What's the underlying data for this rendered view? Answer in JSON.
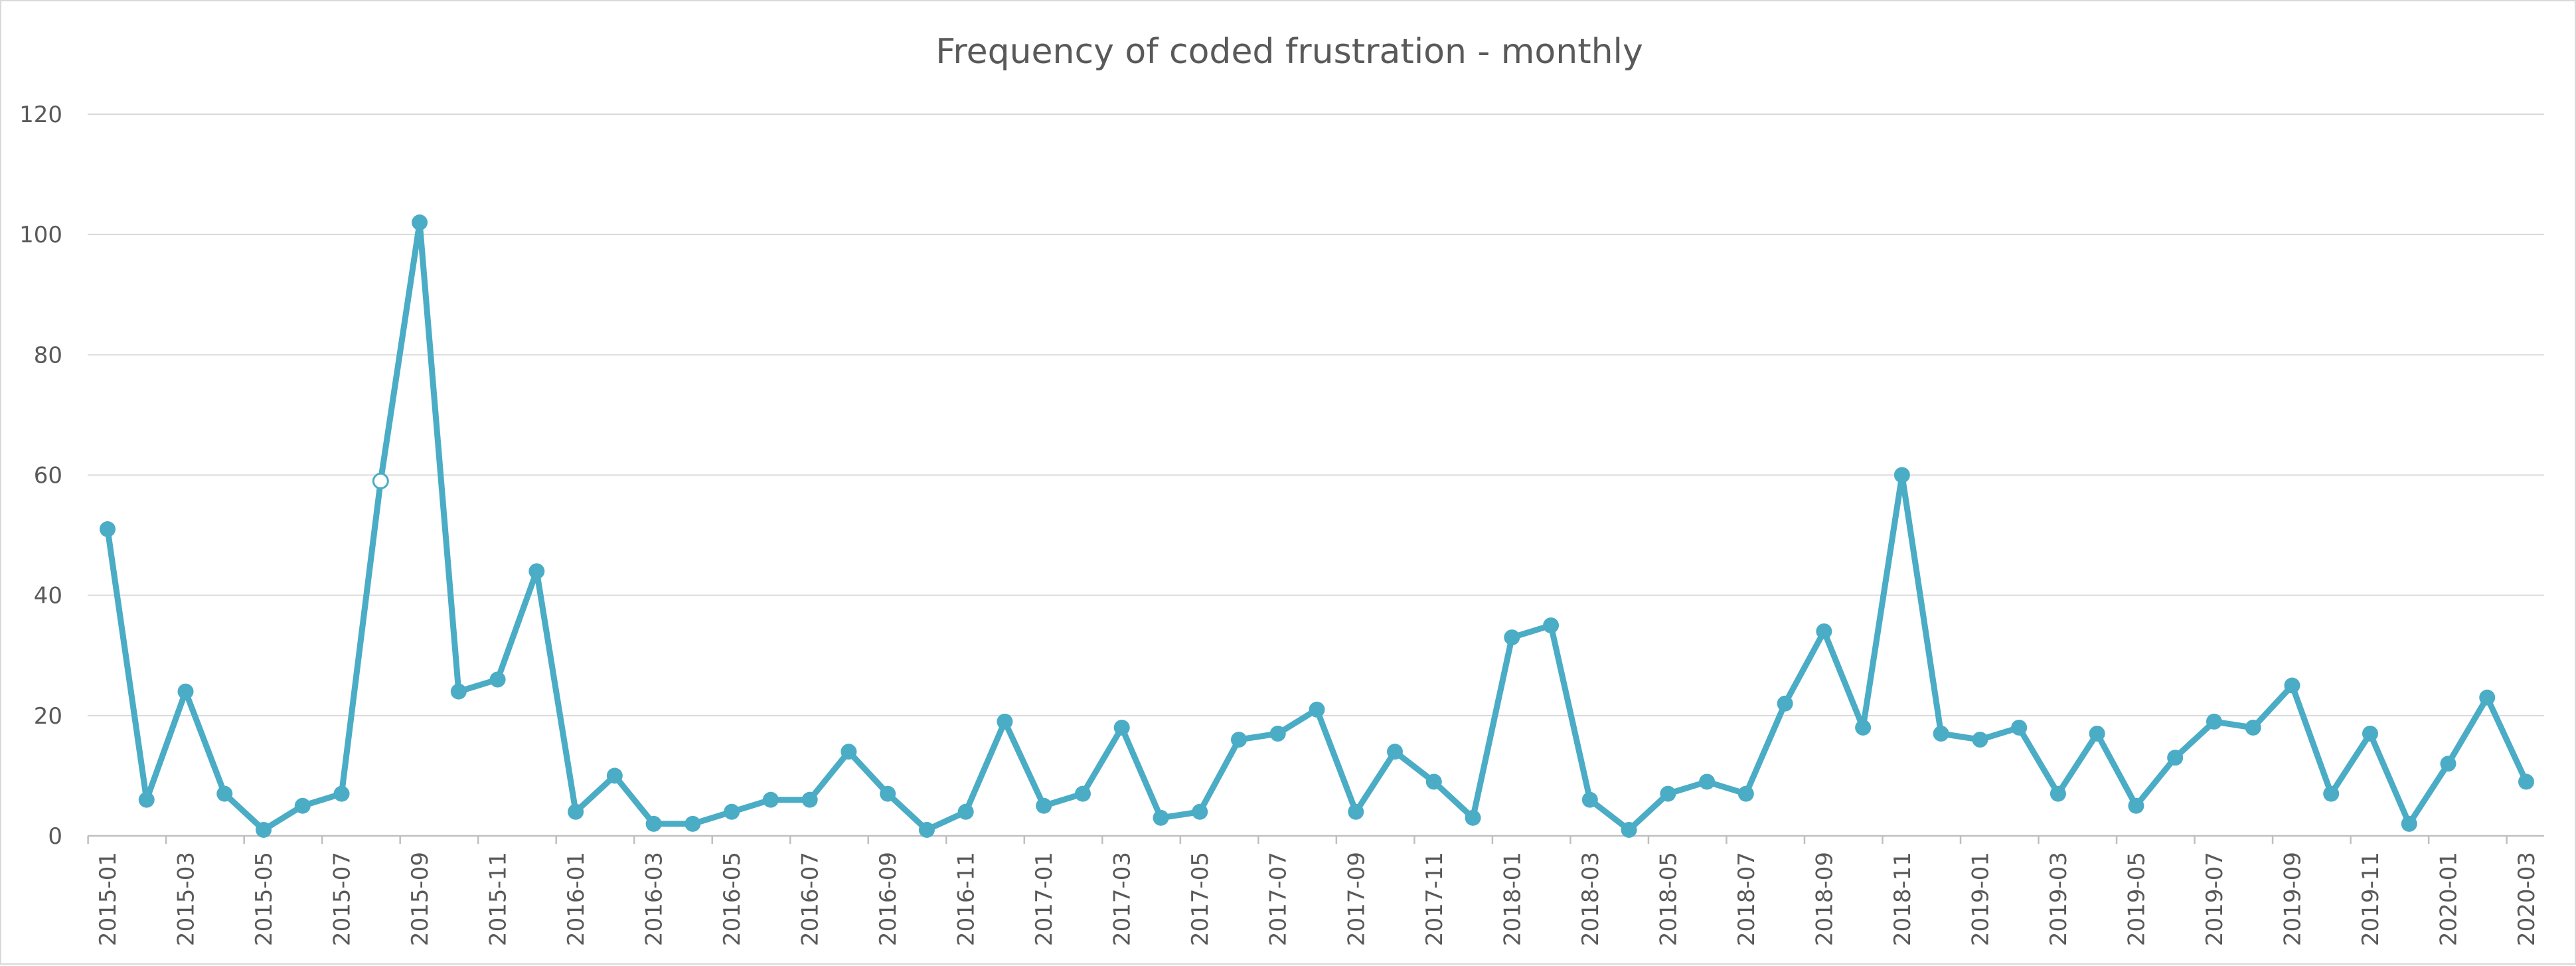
{
  "chart_data": {
    "type": "line",
    "title": "Frequency of coded frustration - monthly",
    "xlabel": "",
    "ylabel": "",
    "ylim": [
      0,
      120
    ],
    "y_ticks": [
      0,
      20,
      40,
      60,
      80,
      100,
      120
    ],
    "grid": true,
    "legend": "none",
    "line_color": "#4bacc6",
    "highlight_color": "#ffffff",
    "x": [
      "2015-01",
      "2015-02",
      "2015-03",
      "2015-04",
      "2015-05",
      "2015-06",
      "2015-07",
      "2015-08",
      "2015-09",
      "2015-10",
      "2015-11",
      "2015-12",
      "2016-01",
      "2016-02",
      "2016-03",
      "2016-04",
      "2016-05",
      "2016-06",
      "2016-07",
      "2016-08",
      "2016-09",
      "2016-10",
      "2016-11",
      "2016-12",
      "2017-01",
      "2017-02",
      "2017-03",
      "2017-04",
      "2017-05",
      "2017-06",
      "2017-07",
      "2017-08",
      "2017-09",
      "2017-10",
      "2017-11",
      "2017-12",
      "2018-01",
      "2018-02",
      "2018-03",
      "2018-04",
      "2018-05",
      "2018-06",
      "2018-07",
      "2018-08",
      "2018-09",
      "2018-10",
      "2018-11",
      "2018-12",
      "2019-01",
      "2019-02",
      "2019-03",
      "2019-04",
      "2019-05",
      "2019-06",
      "2019-07",
      "2019-08",
      "2019-09",
      "2019-10",
      "2019-11",
      "2019-12",
      "2020-01",
      "2020-02",
      "2020-03"
    ],
    "x_tick_labels": [
      "2015-01",
      "2015-03",
      "2015-05",
      "2015-07",
      "2015-09",
      "2015-11",
      "2016-01",
      "2016-03",
      "2016-05",
      "2016-07",
      "2016-09",
      "2016-11",
      "2017-01",
      "2017-03",
      "2017-05",
      "2017-07",
      "2017-09",
      "2017-11",
      "2018-01",
      "2018-03",
      "2018-05",
      "2018-07",
      "2018-09",
      "2018-11",
      "2019-01",
      "2019-03",
      "2019-05",
      "2019-07",
      "2019-09",
      "2019-11",
      "2020-01",
      "2020-03"
    ],
    "series": [
      {
        "values": [
          51,
          6,
          24,
          7,
          1,
          5,
          7,
          59,
          102,
          24,
          26,
          44,
          4,
          10,
          2,
          2,
          4,
          6,
          6,
          14,
          7,
          1,
          4,
          19,
          5,
          7,
          18,
          3,
          4,
          16,
          17,
          21,
          4,
          14,
          9,
          3,
          33,
          35,
          6,
          1,
          7,
          9,
          7,
          22,
          34,
          18,
          60,
          17,
          16,
          18,
          7,
          17,
          5,
          13,
          19,
          18,
          25,
          7,
          17,
          2,
          12,
          23,
          9
        ],
        "highlight_x": "2015-08"
      }
    ]
  }
}
